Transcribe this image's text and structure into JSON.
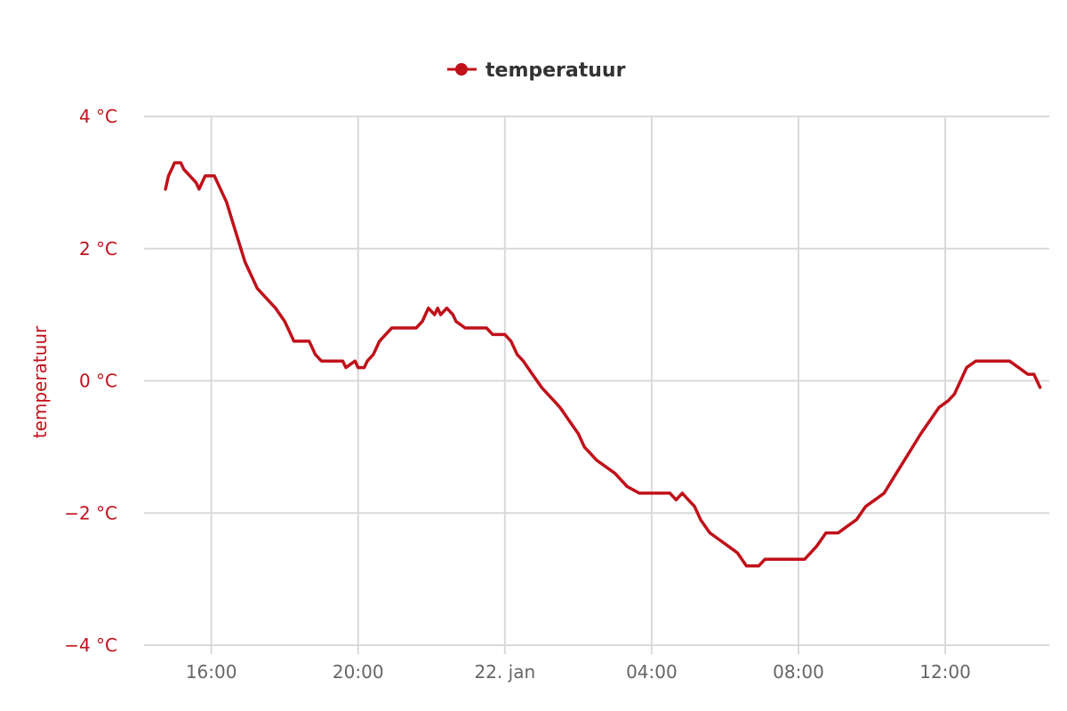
{
  "chart_data": {
    "type": "line",
    "title": "",
    "ylabel": "temperatuur",
    "xlabel": "",
    "ylim": [
      -4,
      4
    ],
    "y_ticks": [
      {
        "value": 4,
        "label": "4 °C"
      },
      {
        "value": 2,
        "label": "2 °C"
      },
      {
        "value": 0,
        "label": "0 °C"
      },
      {
        "value": -2,
        "label": "−2 °C"
      },
      {
        "value": -4,
        "label": "−4 °C"
      }
    ],
    "x_range": [
      "2025-01-21 14:10",
      "2025-01-22 14:50"
    ],
    "x_ticks": [
      {
        "value": "2025-01-21 16:00",
        "label": "16:00"
      },
      {
        "value": "2025-01-21 20:00",
        "label": "20:00"
      },
      {
        "value": "2025-01-22 00:00",
        "label": "22. jan"
      },
      {
        "value": "2025-01-22 04:00",
        "label": "04:00"
      },
      {
        "value": "2025-01-22 08:00",
        "label": "08:00"
      },
      {
        "value": "2025-01-22 12:00",
        "label": "12:00"
      }
    ],
    "grid": true,
    "legend_position": "top-center",
    "series": [
      {
        "name": "temperatuur",
        "color": "#c0101a",
        "points": [
          [
            "2025-01-21 14:45",
            2.9
          ],
          [
            "2025-01-21 14:50",
            3.1
          ],
          [
            "2025-01-21 14:55",
            3.2
          ],
          [
            "2025-01-21 15:00",
            3.3
          ],
          [
            "2025-01-21 15:10",
            3.3
          ],
          [
            "2025-01-21 15:15",
            3.2
          ],
          [
            "2025-01-21 15:25",
            3.1
          ],
          [
            "2025-01-21 15:35",
            3.0
          ],
          [
            "2025-01-21 15:40",
            2.9
          ],
          [
            "2025-01-21 15:45",
            3.0
          ],
          [
            "2025-01-21 15:50",
            3.1
          ],
          [
            "2025-01-21 16:05",
            3.1
          ],
          [
            "2025-01-21 16:15",
            2.9
          ],
          [
            "2025-01-21 16:25",
            2.7
          ],
          [
            "2025-01-21 16:35",
            2.4
          ],
          [
            "2025-01-21 16:45",
            2.1
          ],
          [
            "2025-01-21 16:55",
            1.8
          ],
          [
            "2025-01-21 17:05",
            1.6
          ],
          [
            "2025-01-21 17:15",
            1.4
          ],
          [
            "2025-01-21 17:25",
            1.3
          ],
          [
            "2025-01-21 17:35",
            1.2
          ],
          [
            "2025-01-21 17:45",
            1.1
          ],
          [
            "2025-01-21 18:00",
            0.9
          ],
          [
            "2025-01-21 18:10",
            0.7
          ],
          [
            "2025-01-21 18:15",
            0.6
          ],
          [
            "2025-01-21 18:40",
            0.6
          ],
          [
            "2025-01-21 18:50",
            0.4
          ],
          [
            "2025-01-21 19:00",
            0.3
          ],
          [
            "2025-01-21 19:35",
            0.3
          ],
          [
            "2025-01-21 19:40",
            0.2
          ],
          [
            "2025-01-21 19:55",
            0.3
          ],
          [
            "2025-01-21 20:00",
            0.2
          ],
          [
            "2025-01-21 20:10",
            0.2
          ],
          [
            "2025-01-21 20:15",
            0.3
          ],
          [
            "2025-01-21 20:25",
            0.4
          ],
          [
            "2025-01-21 20:35",
            0.6
          ],
          [
            "2025-01-21 20:45",
            0.7
          ],
          [
            "2025-01-21 20:55",
            0.8
          ],
          [
            "2025-01-21 21:35",
            0.8
          ],
          [
            "2025-01-21 21:45",
            0.9
          ],
          [
            "2025-01-21 21:50",
            1.0
          ],
          [
            "2025-01-21 21:55",
            1.1
          ],
          [
            "2025-01-21 22:05",
            1.0
          ],
          [
            "2025-01-21 22:10",
            1.1
          ],
          [
            "2025-01-21 22:15",
            1.0
          ],
          [
            "2025-01-21 22:25",
            1.1
          ],
          [
            "2025-01-21 22:35",
            1.0
          ],
          [
            "2025-01-21 22:40",
            0.9
          ],
          [
            "2025-01-21 22:55",
            0.8
          ],
          [
            "2025-01-21 23:30",
            0.8
          ],
          [
            "2025-01-21 23:40",
            0.7
          ],
          [
            "2025-01-22 00:00",
            0.7
          ],
          [
            "2025-01-22 00:10",
            0.6
          ],
          [
            "2025-01-22 00:20",
            0.4
          ],
          [
            "2025-01-22 00:30",
            0.3
          ],
          [
            "2025-01-22 00:45",
            0.1
          ],
          [
            "2025-01-22 01:00",
            -0.1
          ],
          [
            "2025-01-22 01:10",
            -0.2
          ],
          [
            "2025-01-22 01:20",
            -0.3
          ],
          [
            "2025-01-22 01:30",
            -0.4
          ],
          [
            "2025-01-22 01:45",
            -0.6
          ],
          [
            "2025-01-22 02:00",
            -0.8
          ],
          [
            "2025-01-22 02:10",
            -1.0
          ],
          [
            "2025-01-22 02:20",
            -1.1
          ],
          [
            "2025-01-22 02:30",
            -1.2
          ],
          [
            "2025-01-22 02:45",
            -1.3
          ],
          [
            "2025-01-22 03:00",
            -1.4
          ],
          [
            "2025-01-22 03:10",
            -1.5
          ],
          [
            "2025-01-22 03:20",
            -1.6
          ],
          [
            "2025-01-22 03:40",
            -1.7
          ],
          [
            "2025-01-22 04:30",
            -1.7
          ],
          [
            "2025-01-22 04:40",
            -1.8
          ],
          [
            "2025-01-22 04:50",
            -1.7
          ],
          [
            "2025-01-22 05:00",
            -1.8
          ],
          [
            "2025-01-22 05:10",
            -1.9
          ],
          [
            "2025-01-22 05:20",
            -2.1
          ],
          [
            "2025-01-22 05:35",
            -2.3
          ],
          [
            "2025-01-22 05:50",
            -2.4
          ],
          [
            "2025-01-22 06:05",
            -2.5
          ],
          [
            "2025-01-22 06:20",
            -2.6
          ],
          [
            "2025-01-22 06:35",
            -2.8
          ],
          [
            "2025-01-22 06:55",
            -2.8
          ],
          [
            "2025-01-22 07:05",
            -2.7
          ],
          [
            "2025-01-22 08:10",
            -2.7
          ],
          [
            "2025-01-22 08:20",
            -2.6
          ],
          [
            "2025-01-22 08:30",
            -2.5
          ],
          [
            "2025-01-22 08:45",
            -2.3
          ],
          [
            "2025-01-22 09:05",
            -2.3
          ],
          [
            "2025-01-22 09:20",
            -2.2
          ],
          [
            "2025-01-22 09:35",
            -2.1
          ],
          [
            "2025-01-22 09:50",
            -1.9
          ],
          [
            "2025-01-22 10:05",
            -1.8
          ],
          [
            "2025-01-22 10:20",
            -1.7
          ],
          [
            "2025-01-22 10:40",
            -1.4
          ],
          [
            "2025-01-22 11:00",
            -1.1
          ],
          [
            "2025-01-22 11:20",
            -0.8
          ],
          [
            "2025-01-22 11:35",
            -0.6
          ],
          [
            "2025-01-22 11:50",
            -0.4
          ],
          [
            "2025-01-22 12:05",
            -0.3
          ],
          [
            "2025-01-22 12:15",
            -0.2
          ],
          [
            "2025-01-22 12:25",
            0.0
          ],
          [
            "2025-01-22 12:35",
            0.2
          ],
          [
            "2025-01-22 12:50",
            0.3
          ],
          [
            "2025-01-22 13:45",
            0.3
          ],
          [
            "2025-01-22 14:00",
            0.2
          ],
          [
            "2025-01-22 14:15",
            0.1
          ],
          [
            "2025-01-22 14:25",
            0.1
          ],
          [
            "2025-01-22 14:35",
            -0.1
          ]
        ]
      }
    ]
  }
}
